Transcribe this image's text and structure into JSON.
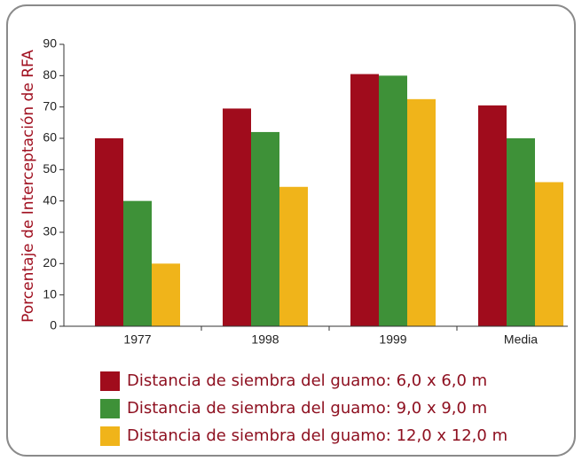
{
  "chart_data": {
    "type": "bar",
    "y_label": "Porcentaje de Interceptación de RFA",
    "categories": [
      "1977",
      "1998",
      "1999",
      "Media"
    ],
    "series": [
      {
        "name": "Distancia de siembra del guamo: 6,0 x 6,0 m",
        "color": "#a00c1c",
        "values": [
          60,
          69.5,
          80.5,
          70.5
        ]
      },
      {
        "name": "Distancia de siembra del guamo: 9,0 x 9,0 m",
        "color": "#3e9138",
        "values": [
          40,
          62,
          80,
          60
        ]
      },
      {
        "name": "Distancia de siembra del guamo: 12,0 x 12,0 m",
        "color": "#f0b41a",
        "values": [
          20,
          44.5,
          72.5,
          46
        ]
      }
    ],
    "ylim": [
      0,
      90
    ],
    "yticks": [
      0,
      10,
      20,
      30,
      40,
      50,
      60,
      70,
      80,
      90
    ]
  }
}
